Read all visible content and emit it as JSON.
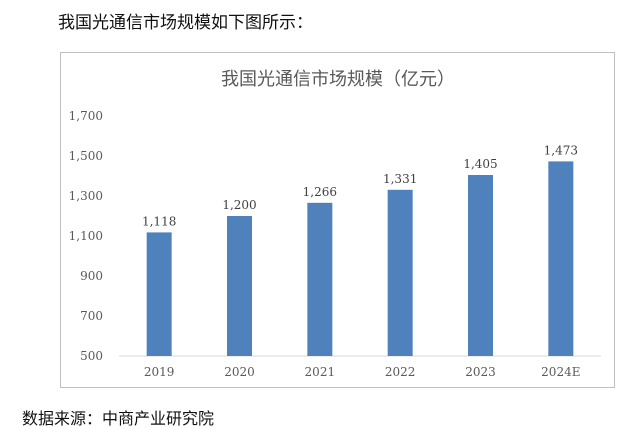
{
  "intro_text": "我国光通信市场规模如下图所示：",
  "source_text": "数据来源：中商产业研究院",
  "chart_data": {
    "type": "bar",
    "title": "我国光通信市场规模（亿元）",
    "categories": [
      "2019",
      "2020",
      "2021",
      "2022",
      "2023",
      "2024E"
    ],
    "values": [
      1118,
      1200,
      1266,
      1331,
      1405,
      1473
    ],
    "data_labels": [
      "1,118",
      "1,200",
      "1,266",
      "1,331",
      "1,405",
      "1,473"
    ],
    "yticks": [
      500,
      700,
      900,
      1100,
      1300,
      1500,
      1700
    ],
    "ytick_labels": [
      "500",
      "700",
      "900",
      "1,100",
      "1,300",
      "1,500",
      "1,700"
    ],
    "ylim": [
      500,
      1700
    ],
    "grid": false,
    "bar_color": "#4f81bd",
    "xlabel": "",
    "ylabel": ""
  }
}
